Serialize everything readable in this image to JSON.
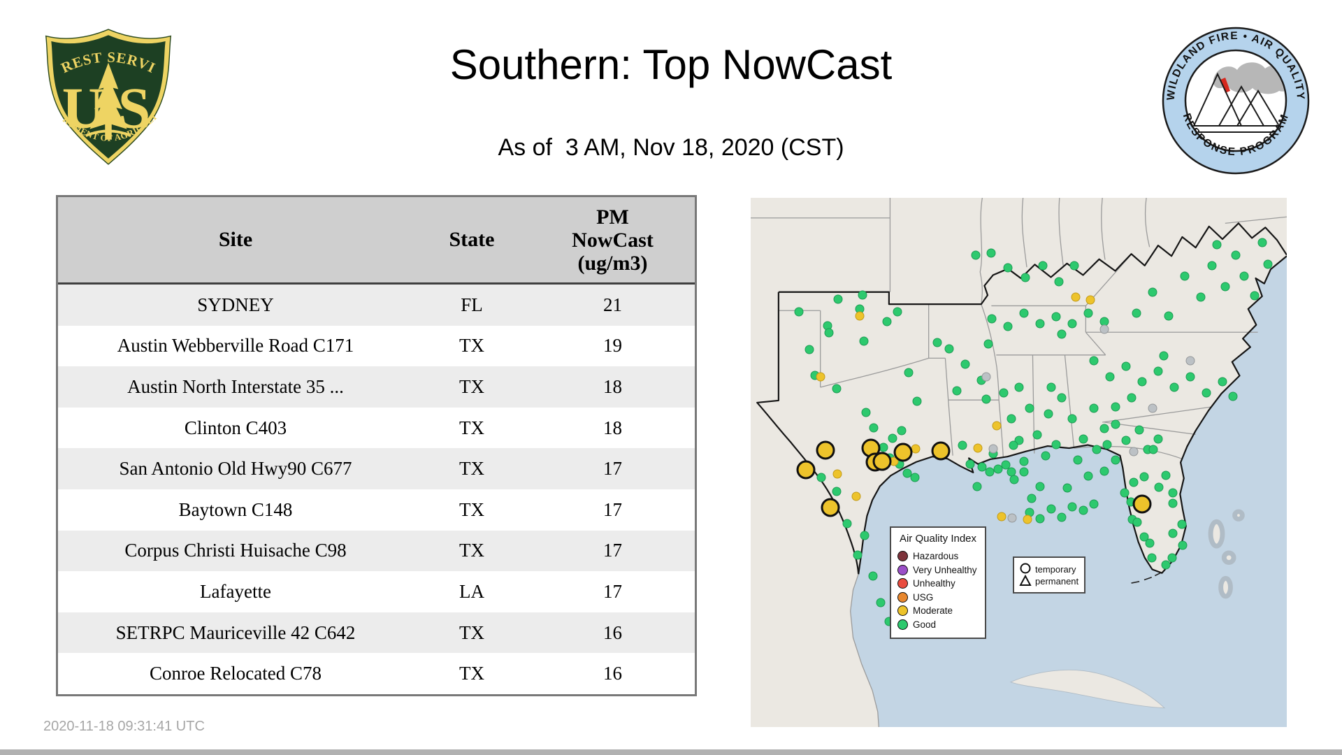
{
  "header": {
    "title": "Southern: Top NowCast",
    "subtitle": "As of  3 AM, Nov 18, 2020 (CST)",
    "forest_service_logo": {
      "arc_top": "FOREST SERVICE",
      "letter_left": "U",
      "letter_right": "S",
      "arc_bottom": "DEPARTMENT OF AGRICULTURE",
      "shield_green": "#1d4023",
      "shield_gold": "#eed463"
    },
    "wfaqrp_logo": {
      "arc_top": "WILDLAND FIRE • AIR QUALITY",
      "arc_bottom": "RESPONSE PROGRAM",
      "ring_blue": "#b5d3ec",
      "flame_red": "#d6281e",
      "smoke_gray": "#b7b7b7"
    }
  },
  "table": {
    "header": {
      "site": "Site",
      "state": "State",
      "value_lines": [
        "PM",
        "NowCast",
        "(ug/m3)"
      ]
    },
    "rows": [
      {
        "site": "SYDNEY",
        "state": "FL",
        "value": "21"
      },
      {
        "site": "Austin Webberville Road C171",
        "state": "TX",
        "value": "19"
      },
      {
        "site": "Austin North Interstate 35 ...",
        "state": "TX",
        "value": "18"
      },
      {
        "site": "Clinton C403",
        "state": "TX",
        "value": "18"
      },
      {
        "site": "San Antonio Old Hwy90 C677",
        "state": "TX",
        "value": "17"
      },
      {
        "site": "Baytown C148",
        "state": "TX",
        "value": "17"
      },
      {
        "site": "Corpus Christi Huisache C98",
        "state": "TX",
        "value": "17"
      },
      {
        "site": "Lafayette",
        "state": "LA",
        "value": "17"
      },
      {
        "site": "SETRPC Mauriceville 42 C642",
        "state": "TX",
        "value": "16"
      },
      {
        "site": "Conroe Relocated C78",
        "state": "TX",
        "value": "16"
      }
    ]
  },
  "map": {
    "colors": {
      "sea": "#c3d5e4",
      "land": "#ebe8e2",
      "state_line": "#9b9b9b",
      "region_border": "#151515",
      "good": "#2dc96e",
      "moderate": "#edc32b",
      "no_data": "#bcc1c5"
    },
    "legend": {
      "title": "Air Quality Index",
      "items": [
        {
          "label": "Hazardous",
          "color": "#7d333b"
        },
        {
          "label": "Very Unhealthy",
          "color": "#9b4fc8"
        },
        {
          "label": "Unhealthy",
          "color": "#e94c3f"
        },
        {
          "label": "USG",
          "color": "#e8872e"
        },
        {
          "label": "Moderate",
          "color": "#edc32b"
        },
        {
          "label": "Good",
          "color": "#2dc96e"
        }
      ]
    },
    "marker_key": {
      "temporary": "temporary",
      "permanent": "permanent"
    },
    "sites": [
      [
        9,
        21.5,
        "g"
      ],
      [
        16.3,
        19.2,
        "g"
      ],
      [
        20.9,
        18.4,
        "g"
      ],
      [
        20.3,
        21,
        "g"
      ],
      [
        14.3,
        24.2,
        "g"
      ],
      [
        14.6,
        25.5,
        "g"
      ],
      [
        11,
        28.7,
        "g"
      ],
      [
        21.1,
        27.1,
        "g"
      ],
      [
        25.4,
        23.4,
        "g"
      ],
      [
        27.4,
        21.5,
        "g"
      ],
      [
        34.8,
        27.3,
        "g"
      ],
      [
        12,
        33.5,
        "g"
      ],
      [
        29.5,
        33,
        "g"
      ],
      [
        31,
        38.5,
        "g"
      ],
      [
        16,
        36,
        "g"
      ],
      [
        21.5,
        40.5,
        "g"
      ],
      [
        23,
        43.5,
        "g"
      ],
      [
        26.5,
        45.5,
        "g"
      ],
      [
        28.2,
        44,
        "g"
      ],
      [
        24.8,
        47.2,
        "g"
      ],
      [
        27.8,
        50.3,
        "g"
      ],
      [
        29.2,
        52,
        "g"
      ],
      [
        26,
        49.2,
        "g"
      ],
      [
        30.6,
        52.8,
        "g"
      ],
      [
        13.2,
        52.8,
        "g"
      ],
      [
        16,
        55.5,
        "g"
      ],
      [
        18,
        61.5,
        "g"
      ],
      [
        21.3,
        63.8,
        "g"
      ],
      [
        20,
        67.5,
        "g"
      ],
      [
        22.8,
        71.5,
        "g"
      ],
      [
        24.3,
        76.5,
        "g"
      ],
      [
        25.8,
        80,
        "g"
      ],
      [
        37,
        28.5,
        "g"
      ],
      [
        40,
        31.5,
        "g"
      ],
      [
        43,
        34.5,
        "g"
      ],
      [
        38.5,
        36.5,
        "g"
      ],
      [
        44,
        38,
        "g"
      ],
      [
        39.5,
        46.8,
        "g"
      ],
      [
        41,
        50.3,
        "g"
      ],
      [
        43.2,
        50.8,
        "g"
      ],
      [
        44.6,
        51.8,
        "g"
      ],
      [
        46.2,
        51.3,
        "g"
      ],
      [
        47.6,
        50.4,
        "g"
      ],
      [
        48.6,
        51.8,
        "g"
      ],
      [
        45.2,
        48.4,
        "g"
      ],
      [
        42.2,
        54.5,
        "g"
      ],
      [
        47.2,
        36.8,
        "g"
      ],
      [
        48.6,
        41.8,
        "g"
      ],
      [
        50,
        45.8,
        "g"
      ],
      [
        51,
        49.8,
        "g"
      ],
      [
        49.2,
        53.2,
        "g"
      ],
      [
        52.4,
        56.8,
        "g"
      ],
      [
        45,
        22.8,
        "g"
      ],
      [
        48,
        24.3,
        "g"
      ],
      [
        51,
        21.8,
        "g"
      ],
      [
        54,
        23.8,
        "g"
      ],
      [
        57,
        22.4,
        "g"
      ],
      [
        60,
        23.8,
        "g"
      ],
      [
        63,
        21.8,
        "g"
      ],
      [
        58,
        25.8,
        "g"
      ],
      [
        66,
        23.4,
        "g"
      ],
      [
        44.3,
        27.6,
        "g"
      ],
      [
        42,
        10.8,
        "g"
      ],
      [
        44.8,
        10.4,
        "g"
      ],
      [
        48,
        13.2,
        "g"
      ],
      [
        51.2,
        15,
        "g"
      ],
      [
        54.5,
        12.8,
        "g"
      ],
      [
        57.5,
        15.8,
        "g"
      ],
      [
        60.3,
        12.8,
        "g"
      ],
      [
        72,
        21.8,
        "g"
      ],
      [
        75,
        17.8,
        "g"
      ],
      [
        78,
        22.3,
        "g"
      ],
      [
        81,
        14.8,
        "g"
      ],
      [
        84,
        18.8,
        "g"
      ],
      [
        86,
        12.8,
        "g"
      ],
      [
        88.5,
        16.8,
        "g"
      ],
      [
        90.5,
        10.8,
        "g"
      ],
      [
        92,
        14.8,
        "g"
      ],
      [
        94,
        18.5,
        "g"
      ],
      [
        87,
        8.8,
        "g"
      ],
      [
        95.5,
        8.5,
        "g"
      ],
      [
        96.5,
        12.5,
        "g"
      ],
      [
        64,
        30.8,
        "g"
      ],
      [
        67,
        33.8,
        "g"
      ],
      [
        70,
        31.8,
        "g"
      ],
      [
        73,
        34.8,
        "g"
      ],
      [
        76,
        32.8,
        "g"
      ],
      [
        79,
        35.8,
        "g"
      ],
      [
        82,
        33.8,
        "g"
      ],
      [
        85,
        36.8,
        "g"
      ],
      [
        88,
        34.8,
        "g"
      ],
      [
        90,
        37.5,
        "g"
      ],
      [
        77,
        29.8,
        "g"
      ],
      [
        71,
        37.8,
        "g"
      ],
      [
        68,
        39.5,
        "g"
      ],
      [
        68,
        42.8,
        "g"
      ],
      [
        70,
        45.8,
        "g"
      ],
      [
        72.5,
        43.8,
        "g"
      ],
      [
        74,
        47.6,
        "g"
      ],
      [
        76,
        45.6,
        "g"
      ],
      [
        66.5,
        46.6,
        "g"
      ],
      [
        58,
        37.8,
        "g"
      ],
      [
        60,
        41.8,
        "g"
      ],
      [
        62,
        45.6,
        "g"
      ],
      [
        64,
        39.8,
        "g"
      ],
      [
        66,
        43.6,
        "g"
      ],
      [
        61,
        49.6,
        "g"
      ],
      [
        63,
        52.6,
        "g"
      ],
      [
        66,
        51.6,
        "g"
      ],
      [
        68,
        49.6,
        "g"
      ],
      [
        59,
        54.8,
        "g"
      ],
      [
        57,
        46.6,
        "g"
      ],
      [
        55.5,
        40.8,
        "g"
      ],
      [
        64.5,
        47.6,
        "g"
      ],
      [
        50,
        35.8,
        "g"
      ],
      [
        52,
        39.8,
        "g"
      ],
      [
        53.5,
        44.8,
        "g"
      ],
      [
        55,
        48.8,
        "g"
      ],
      [
        51,
        51.8,
        "g"
      ],
      [
        54,
        54.6,
        "g"
      ],
      [
        56,
        35.8,
        "g"
      ],
      [
        49,
        46.8,
        "g"
      ],
      [
        52,
        59.4,
        "g"
      ],
      [
        54,
        60.6,
        "g"
      ],
      [
        56,
        58.8,
        "g"
      ],
      [
        58,
        60.4,
        "g"
      ],
      [
        60,
        58.4,
        "g"
      ],
      [
        62,
        59,
        "g"
      ],
      [
        64,
        57.8,
        "g"
      ],
      [
        75.1,
        47.6,
        "g"
      ],
      [
        73.4,
        52.7,
        "g"
      ],
      [
        71.4,
        53.8,
        "g"
      ],
      [
        77.4,
        52.4,
        "g"
      ],
      [
        76.1,
        54.7,
        "g"
      ],
      [
        78.7,
        55.7,
        "g"
      ],
      [
        70.9,
        57.5,
        "g"
      ],
      [
        71.2,
        60.8,
        "g"
      ],
      [
        72.1,
        61.3,
        "g"
      ],
      [
        78.7,
        57.7,
        "g"
      ],
      [
        80.5,
        61.7,
        "g"
      ],
      [
        78.7,
        63.4,
        "g"
      ],
      [
        73.4,
        64.1,
        "g"
      ],
      [
        74.4,
        65.2,
        "g"
      ],
      [
        74.9,
        68,
        "g"
      ],
      [
        78.6,
        68,
        "g"
      ],
      [
        80.6,
        65.7,
        "g"
      ],
      [
        77.5,
        69.3,
        "g"
      ],
      [
        69.8,
        55.8,
        "g"
      ],
      [
        20.3,
        22.3,
        "m"
      ],
      [
        13,
        33.8,
        "m"
      ],
      [
        16.2,
        52.2,
        "m"
      ],
      [
        19.7,
        56.4,
        "m"
      ],
      [
        30.8,
        47.4,
        "m"
      ],
      [
        26.7,
        49.8,
        "m"
      ],
      [
        42.4,
        47.3,
        "m"
      ],
      [
        45.9,
        43.1,
        "m"
      ],
      [
        60.6,
        18.8,
        "m"
      ],
      [
        63.3,
        19.3,
        "m"
      ],
      [
        51.6,
        60.8,
        "m"
      ],
      [
        46.8,
        60.3,
        "m"
      ],
      [
        10.3,
        51.4,
        "t"
      ],
      [
        13.9,
        47.7,
        "t"
      ],
      [
        22.4,
        47.3,
        "t"
      ],
      [
        23.2,
        49.9,
        "t"
      ],
      [
        24.5,
        49.8,
        "t"
      ],
      [
        28.4,
        48.1,
        "t"
      ],
      [
        35.5,
        47.8,
        "t"
      ],
      [
        14.9,
        58.5,
        "t"
      ],
      [
        73,
        57.9,
        "t"
      ],
      [
        44,
        33.8,
        "x"
      ],
      [
        66,
        24.8,
        "x"
      ],
      [
        75,
        39.8,
        "x"
      ],
      [
        48.8,
        60.5,
        "x"
      ],
      [
        71.4,
        48,
        "x"
      ],
      [
        82,
        30.8,
        "x"
      ],
      [
        45.2,
        47.4,
        "x"
      ]
    ]
  },
  "footer": {
    "timestamp": "2020-11-18 09:31:41 UTC"
  }
}
